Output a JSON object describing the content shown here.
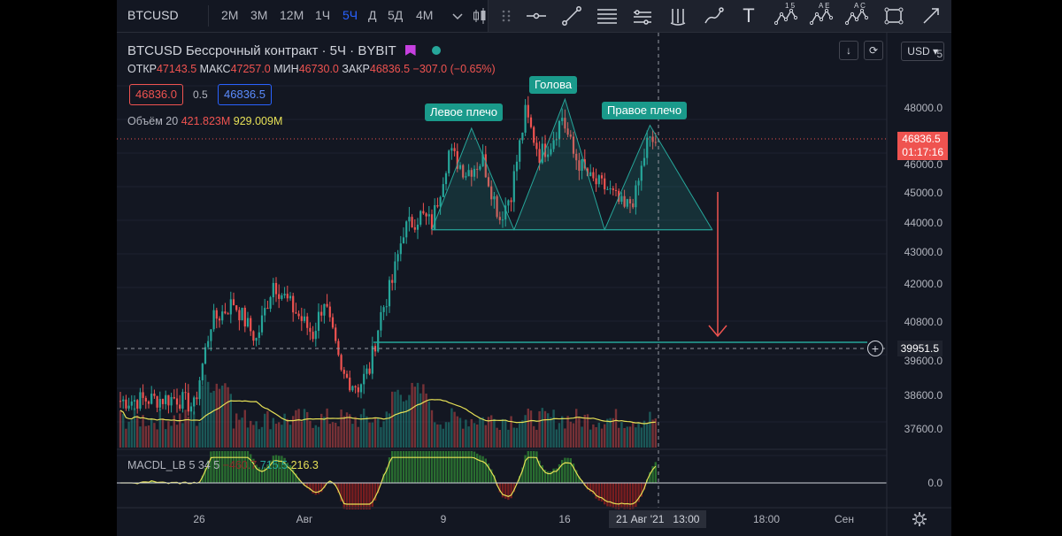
{
  "topbar": {
    "symbol": "BTCUSD",
    "timeframes": [
      "2М",
      "3М",
      "12М",
      "1Ч",
      "5Ч",
      "Д",
      "5Д",
      "4М"
    ],
    "active_timeframe": "5Ч"
  },
  "drawbar": {
    "icons": [
      "drag-handle-icon",
      "horizontal-ray-icon",
      "trend-line-icon",
      "fib-retracement-icon",
      "pitchfork-icon",
      "parallel-channel-icon",
      "brush-icon",
      "text-icon",
      "pattern-15-icon",
      "pattern-ae-icon",
      "pattern-ac-icon",
      "rectangle-icon",
      "arrow-icon"
    ],
    "pattern_labels": [
      "1 5",
      "A E",
      "A C"
    ],
    "text_glyph": "T"
  },
  "legend": {
    "title": "BTCUSD Бессрочный контракт · 5Ч · BYBIT",
    "open_label": "ОТКР",
    "open": "47143.5",
    "high_label": "МАКС",
    "high": "47257.0",
    "low_label": "МИН",
    "low": "46730.0",
    "close_label": "ЗАКР",
    "close": "46836.5",
    "change": "−307.0 (−0.65%)",
    "bid": "46836.0",
    "spread": "0.5",
    "ask": "46836.5"
  },
  "volume": {
    "label": "Объём 20",
    "value1": "421.823M",
    "value2": "929.009M"
  },
  "macd": {
    "label": "MACDL_LB 5 34 5",
    "value1": "−460.7",
    "value2": "715.5",
    "value3": "216.3"
  },
  "pattern": {
    "left_shoulder": "Левое плечо",
    "head": "Голова",
    "right_shoulder": "Правое плечо"
  },
  "price_axis": {
    "top_value": "5",
    "ticks": [
      "48000.0",
      "46000.0",
      "45000.0",
      "44000.0",
      "43000.0",
      "42000.0",
      "40800.0",
      "39600.0",
      "38600.0",
      "37600.0"
    ],
    "current_price": "46836.5",
    "countdown": "01:17:16",
    "crosshair_price": "39951.5",
    "macd_zero": "0.0",
    "currency": "USD",
    "buttons": [
      "↓",
      "⟳"
    ]
  },
  "time_axis": {
    "labels": [
      "26",
      "Авг",
      "9",
      "16",
      "18:00",
      "Сен"
    ],
    "crosshair_label": "21 Авг '21   13:00"
  },
  "colors": {
    "up": "#26a69a",
    "down": "#ef5350",
    "background": "#131722",
    "pattern_fill": "#26a69a",
    "bid_box": "#ef5350",
    "ask_box": "#2962ff",
    "vol_ma": "#e6e056"
  },
  "series": {
    "start_price": 37900,
    "anchors": [
      [
        0,
        37900
      ],
      [
        20,
        38000
      ],
      [
        26,
        37700
      ],
      [
        32,
        40600
      ],
      [
        40,
        41300
      ],
      [
        48,
        40000
      ],
      [
        54,
        42000
      ],
      [
        60,
        41200
      ],
      [
        68,
        40200
      ],
      [
        72,
        41400
      ],
      [
        78,
        38800
      ],
      [
        84,
        38400
      ],
      [
        88,
        39000
      ],
      [
        92,
        40900
      ],
      [
        96,
        42000
      ],
      [
        100,
        43800
      ],
      [
        106,
        44300
      ],
      [
        110,
        44000
      ],
      [
        116,
        46500
      ],
      [
        122,
        45800
      ],
      [
        128,
        46200
      ],
      [
        134,
        44200
      ],
      [
        138,
        45100
      ],
      [
        143,
        47800
      ],
      [
        148,
        46400
      ],
      [
        152,
        46800
      ],
      [
        156,
        47700
      ],
      [
        160,
        46400
      ],
      [
        166,
        45500
      ],
      [
        172,
        45200
      ],
      [
        178,
        44500
      ],
      [
        182,
        45000
      ],
      [
        186,
        46800
      ],
      [
        189,
        46836
      ]
    ]
  }
}
